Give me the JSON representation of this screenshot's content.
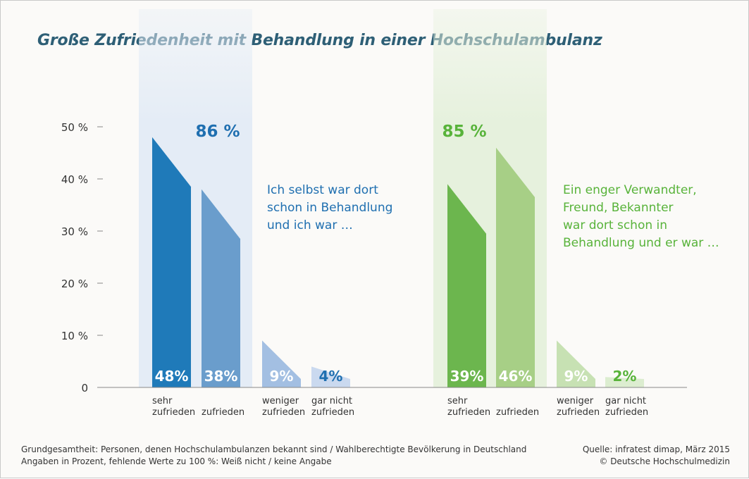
{
  "title": "Große Zufriedenheit mit Behandlung in einer Hochschulambulanz",
  "colors": {
    "left": [
      "#1f7ab9",
      "#6a9dcc",
      "#a3bfe2",
      "#cad9ef"
    ],
    "right": [
      "#6cb64e",
      "#a7cf86",
      "#c7e1b3",
      "#dcedd0"
    ],
    "left_accent": "#1f6fb0",
    "right_accent": "#58b33a",
    "left_highlight": "#e4ecf6",
    "right_highlight": "#e6f1dd"
  },
  "chart_data": {
    "type": "bar",
    "ylim": [
      0,
      50
    ],
    "y_ticks": [
      {
        "value": 0,
        "label": "0"
      },
      {
        "value": 10,
        "label": "10 %"
      },
      {
        "value": 20,
        "label": "20 %"
      },
      {
        "value": 30,
        "label": "30 %"
      },
      {
        "value": 40,
        "label": "40 %"
      },
      {
        "value": 50,
        "label": "50 %"
      }
    ],
    "groups": [
      {
        "total_label": "86 %",
        "note": [
          "Ich selbst war dort",
          "schon in Behandlung",
          "und ich war …"
        ],
        "bars": [
          {
            "category": [
              "sehr",
              "zufrieden"
            ],
            "value": 48,
            "label": "48%"
          },
          {
            "category": [
              "",
              "zufrieden"
            ],
            "value": 38,
            "label": "38%"
          },
          {
            "category": [
              "weniger",
              "zufrieden"
            ],
            "value": 9,
            "label": "9%"
          },
          {
            "category": [
              "gar nicht",
              "zufrieden"
            ],
            "value": 4,
            "label": "4%"
          }
        ]
      },
      {
        "total_label": "85 %",
        "note": [
          "Ein enger Verwandter,",
          "Freund, Bekannter",
          "war dort schon in",
          "Behandlung und er war …"
        ],
        "bars": [
          {
            "category": [
              "sehr",
              "zufrieden"
            ],
            "value": 39,
            "label": "39%"
          },
          {
            "category": [
              "",
              "zufrieden"
            ],
            "value": 46,
            "label": "46%"
          },
          {
            "category": [
              "weniger",
              "zufrieden"
            ],
            "value": 9,
            "label": "9%"
          },
          {
            "category": [
              "gar nicht",
              "zufrieden"
            ],
            "value": 2,
            "label": "2%"
          }
        ]
      }
    ]
  },
  "footer": {
    "left": [
      "Grundgesamtheit: Personen, denen Hochschulambulanzen bekannt sind / Wahlberechtigte Bevölkerung in Deutschland",
      "Angaben in Prozent, fehlende Werte zu 100 %: Weiß nicht / keine Angabe"
    ],
    "right": [
      "Quelle: infratest dimap, März 2015",
      "© Deutsche Hochschulmedizin"
    ]
  }
}
